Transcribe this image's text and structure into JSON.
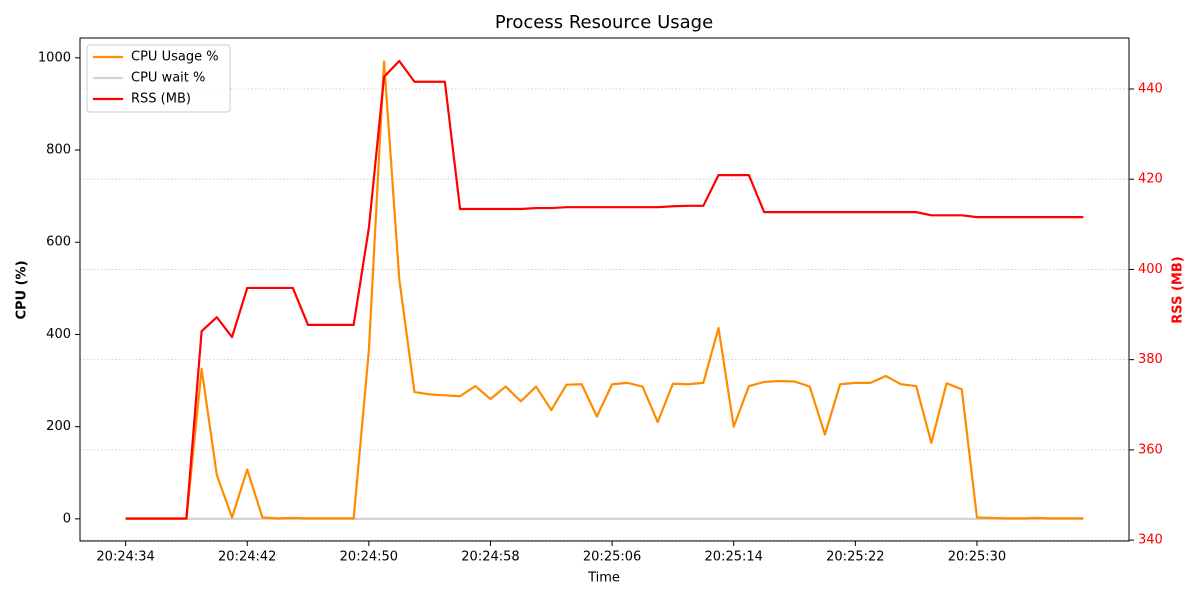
{
  "chart_data": {
    "type": "line",
    "title": "Process Resource Usage",
    "xlabel": "Time",
    "ylabel": "CPU (%)",
    "y2label": "RSS (MB)",
    "x": [
      "20:24:34",
      "20:24:35",
      "20:24:36",
      "20:24:37",
      "20:24:38",
      "20:24:39",
      "20:24:40",
      "20:24:41",
      "20:24:42",
      "20:24:43",
      "20:24:44",
      "20:24:45",
      "20:24:46",
      "20:24:47",
      "20:24:48",
      "20:24:49",
      "20:24:50",
      "20:24:51",
      "20:24:52",
      "20:24:53",
      "20:24:54",
      "20:24:55",
      "20:24:56",
      "20:24:57",
      "20:24:58",
      "20:24:59",
      "20:25:00",
      "20:25:01",
      "20:25:02",
      "20:25:03",
      "20:25:04",
      "20:25:05",
      "20:25:06",
      "20:25:07",
      "20:25:08",
      "20:25:09",
      "20:25:10",
      "20:25:11",
      "20:25:12",
      "20:25:13",
      "20:25:14",
      "20:25:15",
      "20:25:16",
      "20:25:17",
      "20:25:18",
      "20:25:19",
      "20:25:20",
      "20:25:21",
      "20:25:22",
      "20:25:23",
      "20:25:24",
      "20:25:25",
      "20:25:26",
      "20:25:27",
      "20:25:28",
      "20:25:29",
      "20:25:30",
      "20:25:31",
      "20:25:32",
      "20:25:33",
      "20:25:34",
      "20:25:35",
      "20:25:36",
      "20:25:37"
    ],
    "series": [
      {
        "name": "CPU Usage %",
        "color": "#ff8c00",
        "values": [
          0,
          0,
          0,
          0,
          0,
          325,
          95,
          3,
          107,
          3,
          1,
          2,
          1,
          1,
          1,
          1,
          365,
          992,
          520,
          275,
          270,
          268,
          266,
          288,
          260,
          287,
          255,
          287,
          236,
          291,
          292,
          222,
          292,
          295,
          287,
          210,
          293,
          292,
          295,
          414,
          200,
          288,
          297,
          299,
          298,
          287,
          183,
          292,
          295,
          295,
          310,
          292,
          288,
          165,
          294,
          281,
          3,
          2,
          1,
          1,
          2,
          1,
          1,
          1
        ]
      },
      {
        "name": "CPU wait %",
        "color": "#d3d3d3",
        "values": [
          0,
          0,
          0,
          0,
          0,
          0,
          0,
          0,
          0,
          0,
          0,
          0,
          0,
          0,
          0,
          0,
          0,
          0,
          0,
          0,
          0,
          0,
          0,
          0,
          0,
          0,
          0,
          0,
          0,
          0,
          0,
          0,
          0,
          0,
          0,
          0,
          0,
          0,
          0,
          0,
          0,
          0,
          0,
          0,
          0,
          0,
          0,
          0,
          0,
          0,
          0,
          0,
          0,
          0,
          0,
          0,
          0,
          0,
          0,
          0,
          0,
          0,
          0,
          0
        ]
      },
      {
        "name": "RSS (MB)",
        "color": "#ff0000",
        "axis": "y2",
        "values": [
          344.8,
          344.8,
          344.8,
          344.8,
          344.8,
          386.3,
          389.4,
          385,
          395.9,
          395.9,
          395.9,
          395.9,
          387.7,
          387.7,
          387.7,
          387.7,
          409.2,
          442.7,
          446.2,
          441.6,
          441.6,
          441.6,
          413.4,
          413.4,
          413.4,
          413.4,
          413.4,
          413.6,
          413.6,
          413.8,
          413.8,
          413.8,
          413.8,
          413.8,
          413.8,
          413.8,
          414,
          414.1,
          414.1,
          420.9,
          420.9,
          420.9,
          412.7,
          412.7,
          412.7,
          412.7,
          412.7,
          412.7,
          412.7,
          412.7,
          412.7,
          412.7,
          412.7,
          412,
          412,
          412,
          411.6,
          411.6,
          411.6,
          411.6,
          411.6,
          411.6,
          411.6,
          411.6
        ]
      }
    ],
    "xlim": [
      "20:24:31",
      "20:25:40"
    ],
    "xticks": [
      "20:24:34",
      "20:24:42",
      "20:24:50",
      "20:24:58",
      "20:25:06",
      "20:25:14",
      "20:25:22",
      "20:25:30"
    ],
    "ylim": [
      -48,
      1043
    ],
    "yticks": [
      0,
      200,
      400,
      600,
      800,
      1000
    ],
    "y2lim": [
      339.8,
      451.3
    ],
    "y2ticks": [
      340,
      360,
      380,
      400,
      420,
      440
    ],
    "y2color": "#ff0000",
    "grid": "y2",
    "legend": "upper-left"
  }
}
